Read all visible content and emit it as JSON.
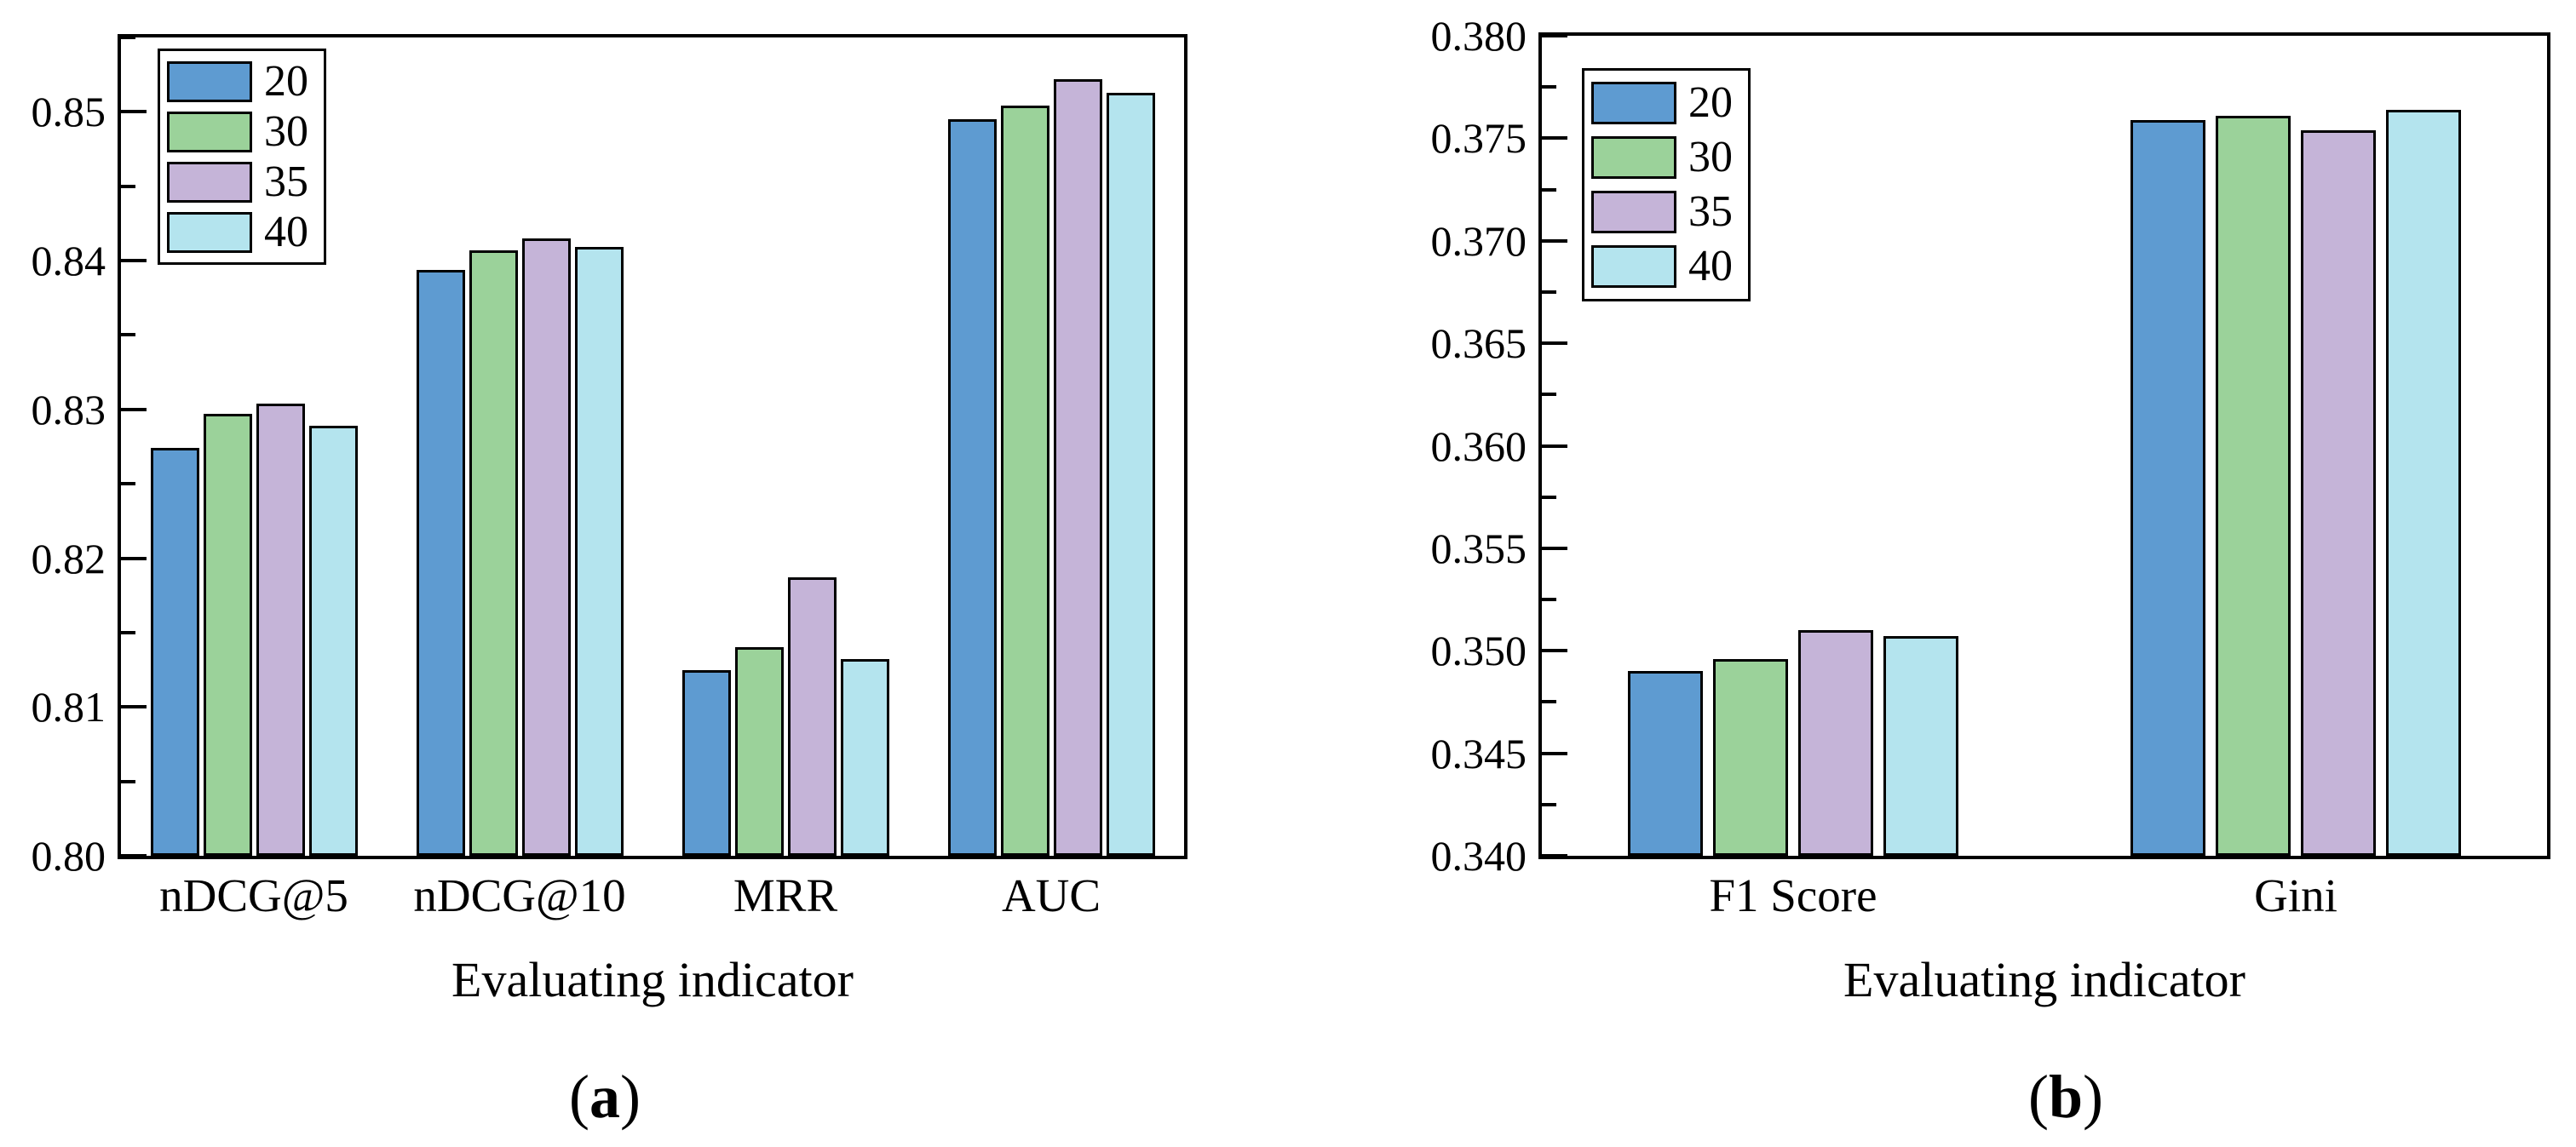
{
  "figure_title": "",
  "palette": {
    "series_20": "#5e9bd1",
    "series_30": "#9bd29a",
    "series_35": "#c5b4d8",
    "series_40": "#b4e4ee",
    "frame": "#000000",
    "background": "#ffffff"
  },
  "chart_data": [
    {
      "id": "a",
      "type": "bar",
      "caption": "(a)",
      "caption_letter": "a",
      "xlabel": "Evaluating indicator",
      "categories": [
        "nDCG@5",
        "nDCG@10",
        "MRR",
        "AUC"
      ],
      "ylim": [
        0.8,
        0.855
      ],
      "ytick_values": [
        0.8,
        0.81,
        0.82,
        0.83,
        0.84,
        0.85
      ],
      "ytick_labels": [
        "0.80",
        "0.81",
        "0.82",
        "0.83",
        "0.84",
        "0.85"
      ],
      "minor_tick_step": 0.005,
      "grid": false,
      "legend_position": "top-left",
      "legend_labels": [
        "20",
        "30",
        "35",
        "40"
      ],
      "series": [
        {
          "name": "20",
          "color": "#5e9bd1",
          "values": [
            0.8274,
            0.8394,
            0.8125,
            0.8495
          ]
        },
        {
          "name": "30",
          "color": "#9bd29a",
          "values": [
            0.8297,
            0.8407,
            0.814,
            0.8504
          ]
        },
        {
          "name": "35",
          "color": "#c5b4d8",
          "values": [
            0.8304,
            0.8415,
            0.8187,
            0.8522
          ]
        },
        {
          "name": "40",
          "color": "#b4e4ee",
          "values": [
            0.8289,
            0.8409,
            0.8132,
            0.8513
          ]
        }
      ]
    },
    {
      "id": "b",
      "type": "bar",
      "caption": "(b)",
      "caption_letter": "b",
      "xlabel": "Evaluating indicator",
      "categories": [
        "F1 Score",
        "Gini"
      ],
      "ylim": [
        0.34,
        0.38
      ],
      "ytick_values": [
        0.34,
        0.345,
        0.35,
        0.355,
        0.36,
        0.365,
        0.37,
        0.375,
        0.38
      ],
      "ytick_labels": [
        "0.340",
        "0.345",
        "0.350",
        "0.355",
        "0.360",
        "0.365",
        "0.370",
        "0.375",
        "0.380"
      ],
      "minor_tick_step": 0.0025,
      "grid": false,
      "legend_position": "top-left",
      "legend_labels": [
        "20",
        "30",
        "35",
        "40"
      ],
      "series": [
        {
          "name": "20",
          "color": "#5e9bd1",
          "values": [
            0.349,
            0.3759
          ]
        },
        {
          "name": "30",
          "color": "#9bd29a",
          "values": [
            0.3496,
            0.3761
          ]
        },
        {
          "name": "35",
          "color": "#c5b4d8",
          "values": [
            0.351,
            0.3754
          ]
        },
        {
          "name": "40",
          "color": "#b4e4ee",
          "values": [
            0.3507,
            0.3764
          ]
        }
      ]
    }
  ]
}
